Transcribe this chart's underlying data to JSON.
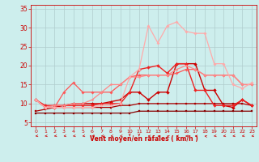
{
  "xlabel": "Vent moyen/en rafales ( km/h )",
  "xlim": [
    -0.5,
    23.5
  ],
  "ylim": [
    4,
    36
  ],
  "yticks": [
    5,
    10,
    15,
    20,
    25,
    30,
    35
  ],
  "xticks": [
    0,
    1,
    2,
    3,
    4,
    5,
    6,
    7,
    8,
    9,
    10,
    11,
    12,
    13,
    14,
    15,
    16,
    17,
    18,
    19,
    20,
    21,
    22,
    23
  ],
  "bg_color": "#cdeeed",
  "grid_color": "#b0cccc",
  "series": [
    {
      "y": [
        7.5,
        7.5,
        7.5,
        7.5,
        7.5,
        7.5,
        7.5,
        7.5,
        7.5,
        7.5,
        7.5,
        8,
        8,
        8,
        8,
        8,
        8,
        8,
        8,
        8,
        8,
        8,
        8,
        8
      ],
      "color": "#880000",
      "lw": 0.9,
      "marker": "s",
      "ms": 1.5
    },
    {
      "y": [
        8,
        8.5,
        9,
        9,
        9,
        9,
        9,
        9,
        9,
        9.5,
        9.5,
        10,
        10,
        10,
        10,
        10,
        10,
        10,
        10,
        10,
        10,
        10,
        10,
        9.5
      ],
      "color": "#aa0000",
      "lw": 0.9,
      "marker": "s",
      "ms": 1.5
    },
    {
      "y": [
        11,
        9,
        9,
        9.5,
        10,
        10,
        10,
        10,
        10.5,
        11,
        13,
        13,
        11,
        13,
        13,
        20.5,
        20.5,
        20.5,
        13.5,
        13.5,
        9.5,
        9,
        11,
        9.5
      ],
      "color": "#cc0000",
      "lw": 1.0,
      "marker": "D",
      "ms": 2.0
    },
    {
      "y": [
        11,
        9.5,
        9.5,
        9.5,
        9.5,
        9.5,
        9.5,
        10,
        10,
        10,
        13,
        19,
        19.5,
        20,
        18,
        20.5,
        20.5,
        13.5,
        13.5,
        9.5,
        9.5,
        9.5,
        11,
        9.5
      ],
      "color": "#ee2222",
      "lw": 1.0,
      "marker": "D",
      "ms": 2.0
    },
    {
      "y": [
        11,
        9,
        9,
        13,
        15.5,
        13,
        13,
        13,
        13,
        15,
        17,
        17.5,
        17.5,
        17.5,
        17.5,
        18,
        19,
        19,
        17.5,
        17.5,
        17.5,
        17.5,
        15,
        15
      ],
      "color": "#ff5555",
      "lw": 0.9,
      "marker": "D",
      "ms": 1.8
    },
    {
      "y": [
        11,
        9,
        9.5,
        9.5,
        10,
        10,
        11,
        13,
        15,
        15,
        17,
        17,
        17.5,
        17.5,
        17.5,
        19,
        20,
        19,
        17.5,
        17.5,
        17.5,
        17.5,
        15,
        15
      ],
      "color": "#ff8888",
      "lw": 0.9,
      "marker": "D",
      "ms": 1.5
    },
    {
      "y": [
        11,
        9,
        9,
        9,
        9,
        9,
        9,
        9.5,
        9.5,
        10,
        17,
        19,
        30.5,
        26,
        30.5,
        31.5,
        29,
        28.5,
        28.5,
        20.5,
        20.5,
        15,
        14,
        15.5
      ],
      "color": "#ffaaaa",
      "lw": 0.9,
      "marker": "D",
      "ms": 1.8
    }
  ],
  "arrow_angles": [
    225,
    225,
    225,
    225,
    225,
    225,
    225,
    225,
    225,
    225,
    180,
    180,
    270,
    315,
    315,
    270,
    270,
    270,
    315,
    225,
    225,
    225,
    225,
    225
  ]
}
